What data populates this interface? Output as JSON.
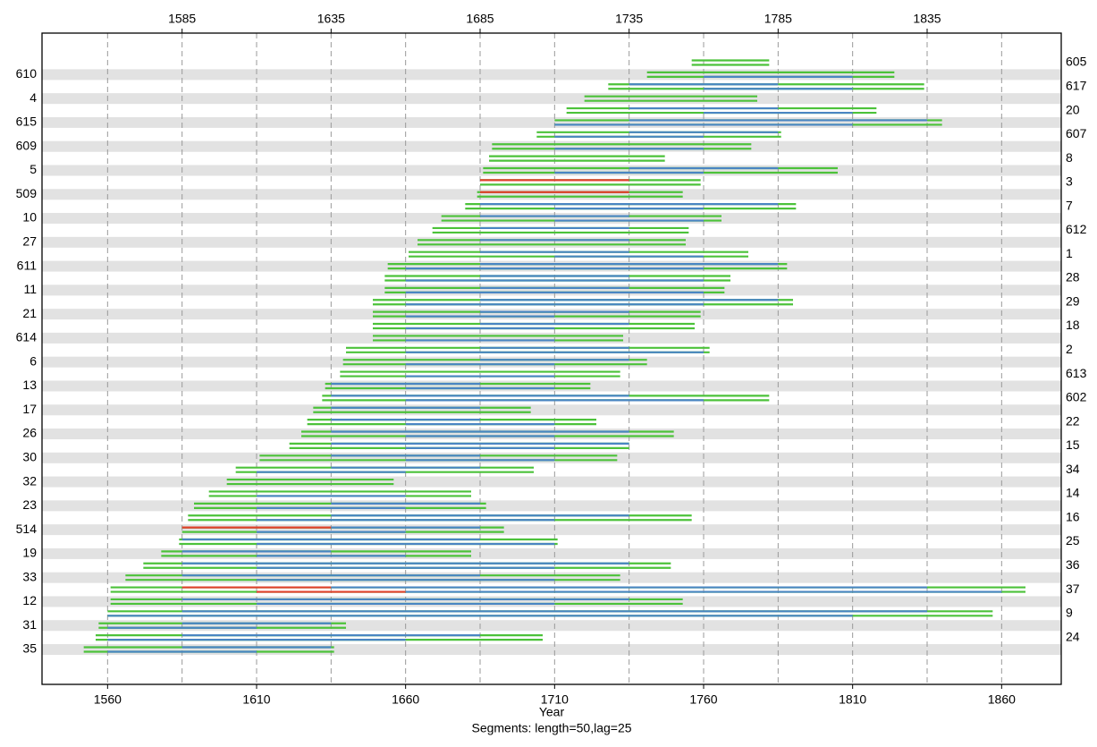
{
  "chart_data": {
    "type": "segment",
    "xlabel": "Year",
    "subtitle": "Segments: length=50,lag=25",
    "xlim": [
      1538,
      1880
    ],
    "xticks": [
      1560,
      1610,
      1660,
      1710,
      1760,
      1810,
      1860
    ],
    "x2ticks": [
      1585,
      1635,
      1685,
      1735,
      1785,
      1835
    ],
    "segment_length": 50,
    "lag": 25,
    "grid": true,
    "colors": {
      "span": "#4cc23a",
      "ok": "#4a86c2",
      "flag": "#e0412c"
    },
    "series": [
      {
        "name": "605",
        "start": 1756,
        "end": 1782,
        "flagged": []
      },
      {
        "name": "610",
        "start": 1741,
        "end": 1824,
        "flagged": []
      },
      {
        "name": "617",
        "start": 1728,
        "end": 1834,
        "flagged": []
      },
      {
        "name": "4",
        "start": 1720,
        "end": 1778,
        "flagged": []
      },
      {
        "name": "20",
        "start": 1714,
        "end": 1818,
        "flagged": []
      },
      {
        "name": "615",
        "start": 1710,
        "end": 1840,
        "flagged": []
      },
      {
        "name": "607",
        "start": 1704,
        "end": 1786,
        "flagged": []
      },
      {
        "name": "609",
        "start": 1689,
        "end": 1776,
        "flagged": []
      },
      {
        "name": "8",
        "start": 1688,
        "end": 1747,
        "flagged": []
      },
      {
        "name": "5",
        "start": 1686,
        "end": 1805,
        "flagged": []
      },
      {
        "name": "3",
        "start": 1685,
        "end": 1759,
        "flagged": [
          1685
        ]
      },
      {
        "name": "509",
        "start": 1684,
        "end": 1753,
        "flagged": [
          1685
        ]
      },
      {
        "name": "7",
        "start": 1680,
        "end": 1791,
        "flagged": []
      },
      {
        "name": "10",
        "start": 1672,
        "end": 1766,
        "flagged": []
      },
      {
        "name": "612",
        "start": 1669,
        "end": 1755,
        "flagged": []
      },
      {
        "name": "27",
        "start": 1664,
        "end": 1754,
        "flagged": []
      },
      {
        "name": "1",
        "start": 1661,
        "end": 1775,
        "flagged": []
      },
      {
        "name": "611",
        "start": 1654,
        "end": 1788,
        "flagged": []
      },
      {
        "name": "28",
        "start": 1653,
        "end": 1769,
        "flagged": []
      },
      {
        "name": "11",
        "start": 1653,
        "end": 1767,
        "flagged": []
      },
      {
        "name": "29",
        "start": 1649,
        "end": 1790,
        "flagged": []
      },
      {
        "name": "21",
        "start": 1649,
        "end": 1759,
        "flagged": []
      },
      {
        "name": "18",
        "start": 1649,
        "end": 1757,
        "flagged": []
      },
      {
        "name": "614",
        "start": 1649,
        "end": 1733,
        "flagged": []
      },
      {
        "name": "2",
        "start": 1640,
        "end": 1762,
        "flagged": []
      },
      {
        "name": "6",
        "start": 1639,
        "end": 1741,
        "flagged": []
      },
      {
        "name": "613",
        "start": 1638,
        "end": 1732,
        "flagged": []
      },
      {
        "name": "13",
        "start": 1633,
        "end": 1722,
        "flagged": []
      },
      {
        "name": "602",
        "start": 1632,
        "end": 1782,
        "flagged": []
      },
      {
        "name": "17",
        "start": 1629,
        "end": 1702,
        "flagged": []
      },
      {
        "name": "22",
        "start": 1627,
        "end": 1724,
        "flagged": []
      },
      {
        "name": "26",
        "start": 1625,
        "end": 1750,
        "flagged": []
      },
      {
        "name": "15",
        "start": 1621,
        "end": 1735,
        "flagged": []
      },
      {
        "name": "30",
        "start": 1611,
        "end": 1731,
        "flagged": []
      },
      {
        "name": "34",
        "start": 1603,
        "end": 1703,
        "flagged": []
      },
      {
        "name": "32",
        "start": 1600,
        "end": 1656,
        "flagged": []
      },
      {
        "name": "14",
        "start": 1594,
        "end": 1682,
        "flagged": []
      },
      {
        "name": "23",
        "start": 1589,
        "end": 1687,
        "flagged": []
      },
      {
        "name": "16",
        "start": 1587,
        "end": 1756,
        "flagged": []
      },
      {
        "name": "514",
        "start": 1585,
        "end": 1693,
        "flagged": [
          1585
        ]
      },
      {
        "name": "25",
        "start": 1584,
        "end": 1711,
        "flagged": []
      },
      {
        "name": "19",
        "start": 1578,
        "end": 1682,
        "flagged": []
      },
      {
        "name": "36",
        "start": 1572,
        "end": 1749,
        "flagged": []
      },
      {
        "name": "33",
        "start": 1566,
        "end": 1732,
        "flagged": []
      },
      {
        "name": "37",
        "start": 1561,
        "end": 1868,
        "flagged": [
          1585,
          1610
        ]
      },
      {
        "name": "12",
        "start": 1561,
        "end": 1753,
        "flagged": []
      },
      {
        "name": "9",
        "start": 1560,
        "end": 1857,
        "flagged": []
      },
      {
        "name": "31",
        "start": 1557,
        "end": 1640,
        "flagged": []
      },
      {
        "name": "24",
        "start": 1556,
        "end": 1706,
        "flagged": []
      },
      {
        "name": "35",
        "start": 1552,
        "end": 1636,
        "flagged": []
      }
    ]
  }
}
